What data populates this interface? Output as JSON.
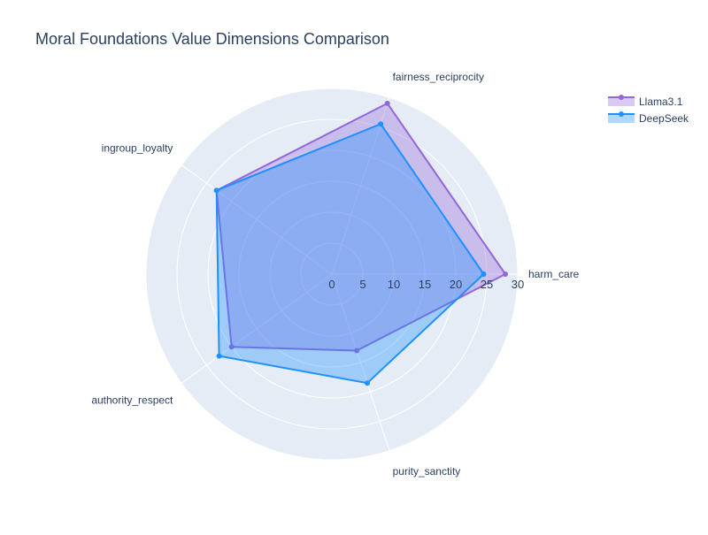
{
  "chart_data": {
    "type": "radar",
    "title": "Moral Foundations Value Dimensions Comparison",
    "categories": [
      "harm_care",
      "fairness_reciprocity",
      "ingroup_loyalty",
      "authority_respect",
      "purity_sanctity"
    ],
    "radial_range": [
      0,
      30
    ],
    "radial_ticks": [
      0,
      5,
      10,
      15,
      20,
      25,
      30
    ],
    "grid": true,
    "legend_position": "top-right",
    "series": [
      {
        "name": "Llama3.1",
        "values": [
          28,
          29,
          23,
          20,
          13
        ],
        "color": "#9467d8"
      },
      {
        "name": "DeepSeek",
        "values": [
          24.5,
          25.5,
          23,
          22.5,
          18.5
        ],
        "color": "#1e90ff"
      }
    ]
  },
  "colors": {
    "polar_background": "#e5ecf6",
    "grid_line": "#ffffff",
    "text": "#2a3f5f"
  }
}
